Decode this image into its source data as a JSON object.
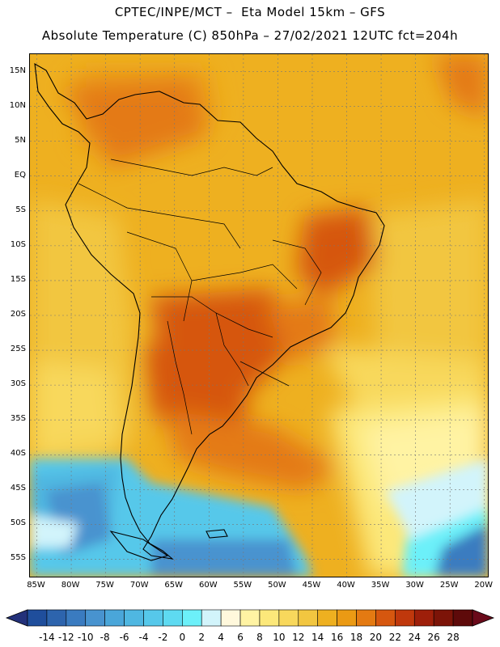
{
  "header": {
    "line1": "CPTEC/INPE/MCT –  Eta Model 15km – GFS",
    "line2": "Absolute Temperature (C) 850hPa – 27/02/2021 12UTC fct=204h"
  },
  "map": {
    "lat_labels": [
      "15N",
      "10N",
      "5N",
      "EQ",
      "5S",
      "10S",
      "15S",
      "20S",
      "25S",
      "30S",
      "35S",
      "40S",
      "45S",
      "50S",
      "55S"
    ],
    "lon_labels": [
      "85W",
      "80W",
      "75W",
      "70W",
      "65W",
      "60W",
      "55W",
      "50W",
      "45W",
      "40W",
      "35W",
      "30W",
      "25W",
      "20W"
    ],
    "lat_range": [
      17.5,
      -57.5
    ],
    "lon_range": [
      -86,
      -19.5
    ],
    "grid": "dashed"
  },
  "colorbar": {
    "labels": [
      "-14",
      "-12",
      "-10",
      "-8",
      "-6",
      "-4",
      "-2",
      "0",
      "2",
      "4",
      "6",
      "8",
      "10",
      "12",
      "14",
      "16",
      "18",
      "20",
      "22",
      "24",
      "26",
      "28"
    ],
    "colors": [
      "#1f4e9c",
      "#2d64ad",
      "#3a7bc0",
      "#4893cf",
      "#4aa6d9",
      "#4fb7e1",
      "#56c8ea",
      "#5edaf1",
      "#6cf0f9",
      "#d2f4fb",
      "#fff8dc",
      "#fff3a3",
      "#fce87a",
      "#f8d85c",
      "#f2c640",
      "#eeb020",
      "#eb9a14",
      "#e47a12",
      "#d6570f",
      "#c0380c",
      "#9e1f0a",
      "#7c1408",
      "#5e0a0a"
    ],
    "under_color": "#23317a",
    "over_color": "#6a0a1a"
  }
}
